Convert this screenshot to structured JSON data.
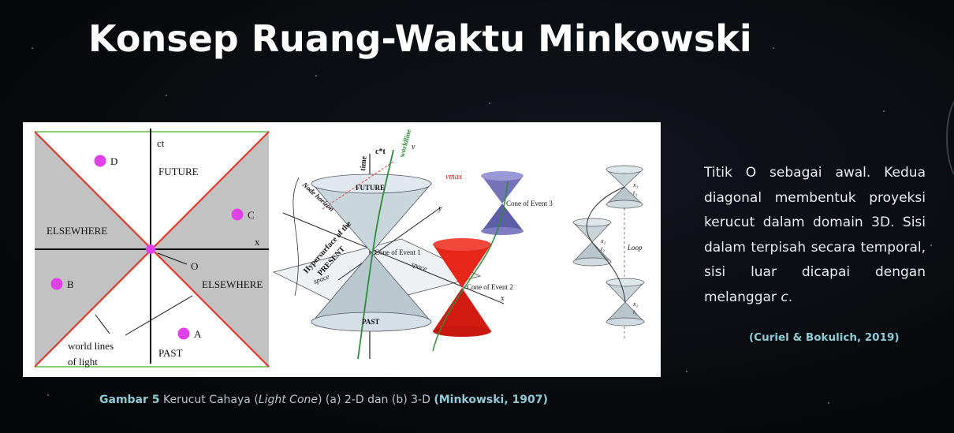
{
  "slide": {
    "title": "Konsep Ruang-Waktu Minkowski"
  },
  "figure_2d": {
    "axis_t": "ct",
    "axis_x": "x",
    "future": "FUTURE",
    "past": "PAST",
    "elsewhere_left": "ELSEWHERE",
    "elsewhere_right": "ELSEWHERE",
    "origin": "O",
    "points": [
      "D",
      "C",
      "B",
      "A"
    ],
    "world_lines_1": "world lines",
    "world_lines_2": "of light",
    "colors": {
      "region": "#c0c0c0",
      "light": "#e03a2e",
      "point": "#e040e8",
      "frame": "#88d070"
    }
  },
  "figure_3d": {
    "time_label": "time",
    "ct_label": "c*t",
    "worldline": "worldline",
    "v_label": "v",
    "vmax": "vmax",
    "node_horizon": "Node horizon",
    "future": "FUTURE",
    "past": "PAST",
    "hypersurface_1": "Hypersurface of the",
    "hypersurface_2": "PRESENT",
    "space_1": "space",
    "space_2": "space",
    "cone1": "Cone of Event 1",
    "cone2": "Cone of Event 2",
    "cone3": "Cone of Event 3",
    "y_label": "y",
    "x_label": "x"
  },
  "figure_loop": {
    "x3": "x₃",
    "t3": "t₃",
    "x2": "x₂",
    "t2": "t₂",
    "x1": "x₁",
    "t1": "t₁",
    "loop": "Loop"
  },
  "caption": {
    "label": "Gambar 5",
    "text_1": " Kerucut Cahaya (",
    "italic": "Light Cone",
    "text_2": ") (a) 2-D dan (b) 3-D ",
    "ref": "(Minkowski, 1907)"
  },
  "description": {
    "text_1": "Titik O sebagai awal. Kedua diagonal membentuk proyeksi kerucut dalam domain 3D. Sisi dalam terpisah secara temporal, sisi luar dicapai dengan melanggar ",
    "italic": "c",
    "text_2": "."
  },
  "citation": "(Curiel & Bokulich, 2019)"
}
